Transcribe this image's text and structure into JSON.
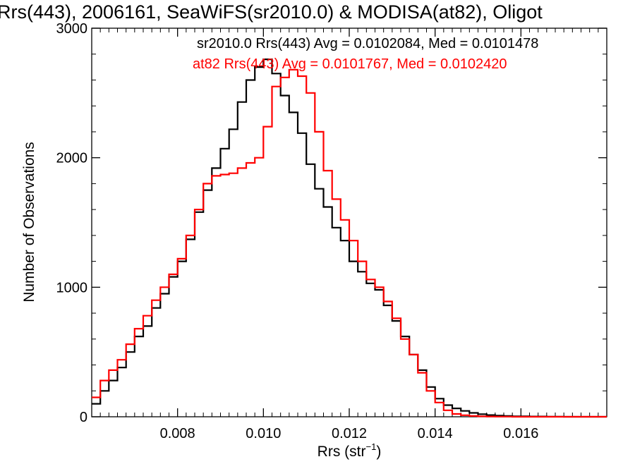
{
  "chart_data": {
    "type": "line",
    "title": "Rrs(443), 2006161, SeaWiFS(sr2010.0) & MODISA(at82), Oligot",
    "xlabel_main": "Rrs (str",
    "xlabel_sup": "−1",
    "xlabel_tail": ")",
    "ylabel": "Number of Observations",
    "xlim": [
      0.006,
      0.018
    ],
    "ylim": [
      0,
      3000
    ],
    "x_ticks": [
      0.008,
      0.01,
      0.012,
      0.014,
      0.016
    ],
    "x_tick_labels": [
      "0.008",
      "0.010",
      "0.012",
      "0.014",
      "0.016"
    ],
    "y_ticks": [
      0,
      1000,
      2000,
      3000
    ],
    "y_tick_labels": [
      "0",
      "1000",
      "2000",
      "3000"
    ],
    "grid": false,
    "annotations": [
      {
        "text": "sr2010.0 Rrs(443) Avg = 0.0102084, Med = 0.0101478",
        "color": "#000000"
      },
      {
        "text": "at82 Rrs(443) Avg = 0.0101767, Med = 0.0102420",
        "color": "#ff0000"
      }
    ],
    "series": [
      {
        "color": "#000000",
        "x": [
          0.006,
          0.0062,
          0.0064,
          0.0066,
          0.0068,
          0.007,
          0.0072,
          0.0074,
          0.0076,
          0.0078,
          0.008,
          0.0082,
          0.0084,
          0.0086,
          0.0088,
          0.009,
          0.0092,
          0.0094,
          0.0096,
          0.0098,
          0.01,
          0.0102,
          0.0104,
          0.0106,
          0.0108,
          0.011,
          0.0112,
          0.0114,
          0.0116,
          0.0118,
          0.012,
          0.0122,
          0.0124,
          0.0126,
          0.0128,
          0.013,
          0.0132,
          0.0134,
          0.0136,
          0.0138,
          0.014,
          0.0142,
          0.0144,
          0.0146,
          0.0148,
          0.015,
          0.0152,
          0.0154,
          0.0156,
          0.0158,
          0.016,
          0.0162,
          0.0164,
          0.0166,
          0.0168,
          0.017,
          0.0172,
          0.0174,
          0.0176,
          0.0178,
          0.018
        ],
        "y": [
          100,
          200,
          280,
          380,
          500,
          620,
          700,
          840,
          950,
          1080,
          1200,
          1370,
          1580,
          1750,
          1920,
          2070,
          2220,
          2430,
          2600,
          2700,
          2760,
          2650,
          2480,
          2350,
          2190,
          1950,
          1760,
          1620,
          1460,
          1360,
          1200,
          1120,
          1030,
          980,
          860,
          740,
          620,
          480,
          360,
          230,
          140,
          90,
          65,
          45,
          30,
          20,
          13,
          9,
          6,
          4,
          3,
          2,
          2,
          1,
          1,
          0,
          0,
          0,
          0,
          0,
          0
        ]
      },
      {
        "color": "#ff0000",
        "x": [
          0.006,
          0.0062,
          0.0064,
          0.0066,
          0.0068,
          0.007,
          0.0072,
          0.0074,
          0.0076,
          0.0078,
          0.008,
          0.0082,
          0.0084,
          0.0086,
          0.0088,
          0.009,
          0.0092,
          0.0094,
          0.0096,
          0.0098,
          0.01,
          0.0102,
          0.0104,
          0.0106,
          0.0108,
          0.011,
          0.0112,
          0.0114,
          0.0116,
          0.0118,
          0.012,
          0.0122,
          0.0124,
          0.0126,
          0.0128,
          0.013,
          0.0132,
          0.0134,
          0.0136,
          0.0138,
          0.014,
          0.0142,
          0.0144,
          0.0146,
          0.0148,
          0.015,
          0.0152,
          0.0154,
          0.0156,
          0.0158,
          0.016,
          0.0162,
          0.0164,
          0.0166,
          0.0168,
          0.017,
          0.0172,
          0.0174,
          0.0176,
          0.0178,
          0.018
        ],
        "y": [
          150,
          280,
          360,
          440,
          560,
          680,
          780,
          900,
          1000,
          1100,
          1220,
          1400,
          1600,
          1800,
          1860,
          1870,
          1880,
          1920,
          1960,
          2000,
          2240,
          2550,
          2620,
          2680,
          2630,
          2500,
          2200,
          1900,
          1680,
          1520,
          1360,
          1200,
          1060,
          1000,
          890,
          760,
          600,
          480,
          340,
          200,
          110,
          50,
          22,
          12,
          6,
          3,
          2,
          1,
          1,
          0,
          0,
          0,
          0,
          0,
          0,
          0,
          0,
          0,
          0,
          0,
          0
        ]
      }
    ]
  }
}
